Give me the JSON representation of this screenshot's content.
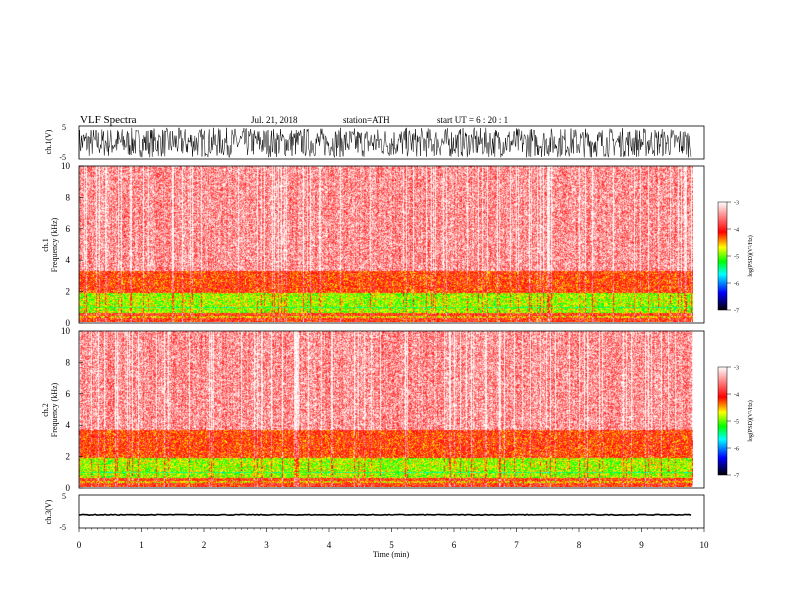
{
  "header": {
    "title": "VLF  Spectra",
    "date": "Jul.  21, 2018",
    "station": "station=ATH",
    "start_ut": "start  UT  =   6  : 20 : 1"
  },
  "chart_data": [
    {
      "type": "line",
      "name": "ch1-waveform",
      "ylabel": "ch.1(V)",
      "ylim": [
        -5,
        5
      ],
      "y_ticks": [
        "5",
        "-5"
      ],
      "xlim": [
        0,
        10
      ],
      "data_extent_min": [
        0,
        9.8
      ],
      "description_values": {
        "amplitude_min": -4.5,
        "amplitude_max": 4.5
      }
    },
    {
      "type": "heatmap",
      "name": "ch1-spectrogram",
      "ylabel_line1": "ch.1",
      "ylabel_line2": "Frequency  (kHz)",
      "ylim": [
        0,
        10
      ],
      "y_ticks": [
        "0",
        "2",
        "4",
        "6",
        "8",
        "10"
      ],
      "xlim": [
        0,
        10
      ],
      "data_extent_min": [
        0,
        9.8
      ],
      "bands": [
        {
          "freq": [
            0,
            0.6
          ],
          "log_psd": -4.2
        },
        {
          "freq": [
            0.6,
            1.9
          ],
          "log_psd": -5.0
        },
        {
          "freq": [
            1.9,
            3.3
          ],
          "log_psd": -4.3
        },
        {
          "freq": [
            3.3,
            10
          ],
          "log_psd": -3.6
        }
      ]
    },
    {
      "type": "heatmap",
      "name": "ch2-spectrogram",
      "ylabel_line1": "ch.2",
      "ylabel_line2": "Frequency  (kHz)",
      "ylim": [
        0,
        10
      ],
      "y_ticks": [
        "0",
        "2",
        "4",
        "6",
        "8",
        "10"
      ],
      "xlim": [
        0,
        10
      ],
      "data_extent_min": [
        0,
        9.8
      ],
      "bands": [
        {
          "freq": [
            0,
            0.6
          ],
          "log_psd": -4.2
        },
        {
          "freq": [
            0.6,
            1.9
          ],
          "log_psd": -5.0
        },
        {
          "freq": [
            1.9,
            3.7
          ],
          "log_psd": -4.3
        },
        {
          "freq": [
            3.7,
            10
          ],
          "log_psd": -3.6
        }
      ]
    },
    {
      "type": "line",
      "name": "ch3-waveform",
      "ylabel": "ch.3(V)",
      "ylim": [
        -5,
        5
      ],
      "y_ticks": [
        "5",
        "-5"
      ],
      "xlim": [
        0,
        10
      ],
      "data_extent_min": [
        0,
        9.8
      ],
      "description_values": {
        "level": -1.0
      }
    }
  ],
  "x_axis": {
    "label": "Time  (min)",
    "ticks": [
      "0",
      "1",
      "2",
      "3",
      "4",
      "5",
      "6",
      "7",
      "8",
      "9",
      "10"
    ]
  },
  "colorbar": {
    "label": "log(PSD)(V²/Hz)",
    "range": [
      -7,
      -3
    ],
    "ticks": [
      "-3",
      "-4",
      "-5",
      "-6",
      "-7"
    ],
    "colors": [
      "#000000",
      "#0000ff",
      "#00ffff",
      "#00ff00",
      "#ffff00",
      "#ff0000",
      "#ffffff"
    ]
  }
}
